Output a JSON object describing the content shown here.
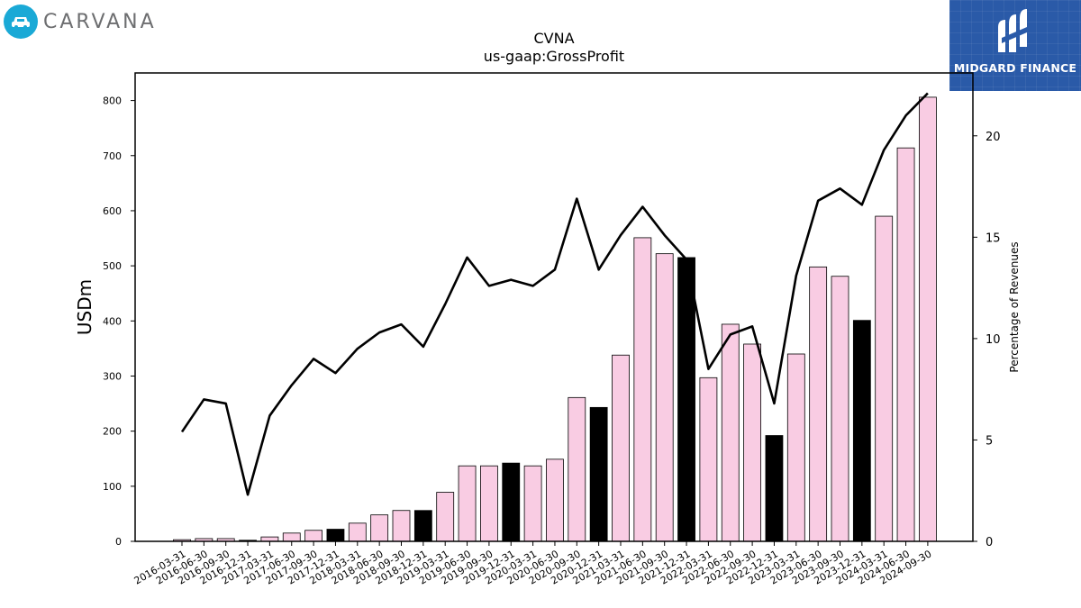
{
  "brand": {
    "left_logo_text": "CARVANA",
    "right_logo_text": "MIDGARD FINANCE"
  },
  "chart_data": {
    "type": "bar",
    "title": "CVNA",
    "subtitle": "us-gaap:GrossProfit",
    "ylabel": "USDm",
    "y2label": "Percentage of Revenues",
    "ylim": [
      0,
      850
    ],
    "y2lim": [
      0,
      23.1
    ],
    "yticks": [
      0,
      100,
      200,
      300,
      400,
      500,
      600,
      700,
      800
    ],
    "y2ticks": [
      0,
      5,
      10,
      15,
      20
    ],
    "grid": false,
    "colors": {
      "bar_quarter": "#f9cce3",
      "bar_q4": "#000000",
      "bar_edge": "#000000",
      "line": "#000000"
    },
    "categories": [
      "2016-03-31",
      "2016-06-30",
      "2016-09-30",
      "2016-12-31",
      "2017-03-31",
      "2017-06-30",
      "2017-09-30",
      "2017-12-31",
      "2018-03-31",
      "2018-06-30",
      "2018-09-30",
      "2018-12-31",
      "2019-03-31",
      "2019-06-30",
      "2019-09-30",
      "2019-12-31",
      "2020-03-31",
      "2020-06-30",
      "2020-09-30",
      "2020-12-31",
      "2021-03-31",
      "2021-06-30",
      "2021-09-30",
      "2021-12-31",
      "2022-03-31",
      "2022-06-30",
      "2022-09-30",
      "2022-12-31",
      "2023-03-31",
      "2023-06-30",
      "2023-09-30",
      "2023-12-31",
      "2024-03-31",
      "2024-06-30",
      "2024-09-30"
    ],
    "series": [
      {
        "values": [
          3,
          5,
          5,
          2,
          8,
          15,
          20,
          22,
          33,
          48,
          56,
          56,
          89,
          137,
          137,
          142,
          137,
          149,
          261,
          243,
          338,
          551,
          522,
          515,
          297,
          394,
          358,
          192,
          340,
          498,
          481,
          401,
          590,
          714,
          806
        ]
      },
      {
        "values": [
          5.4,
          7.0,
          6.8,
          2.3,
          6.2,
          7.7,
          9.0,
          8.3,
          9.5,
          10.3,
          10.7,
          9.6,
          11.7,
          14.0,
          12.6,
          12.9,
          12.6,
          13.4,
          16.9,
          13.4,
          15.1,
          16.5,
          15.1,
          13.9,
          8.5,
          10.2,
          10.6,
          6.8,
          13.1,
          16.8,
          17.4,
          16.6,
          19.3,
          21.0,
          22.1
        ]
      }
    ]
  }
}
